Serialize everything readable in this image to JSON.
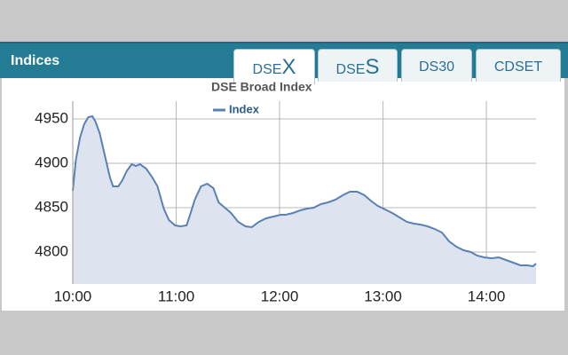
{
  "header": {
    "title": "Indices"
  },
  "tabs": [
    {
      "text": "DSE",
      "big": "X"
    },
    {
      "text": "DSE",
      "big": "S"
    },
    {
      "text": "DS30"
    },
    {
      "text": "CDSET"
    }
  ],
  "chart_data": {
    "type": "area",
    "title": "DSE Broad Index",
    "series": [
      {
        "name": "Index",
        "color": "#5a80b4",
        "fill": "#dde4ef",
        "x": [
          10.0,
          10.03,
          10.07,
          10.11,
          10.15,
          10.19,
          10.22,
          10.26,
          10.31,
          10.36,
          10.39,
          10.44,
          10.48,
          10.52,
          10.57,
          10.61,
          10.65,
          10.71,
          10.77,
          10.82,
          10.88,
          10.93,
          10.99,
          11.04,
          11.1,
          11.14,
          11.18,
          11.24,
          11.3,
          11.36,
          11.41,
          11.46,
          11.53,
          11.6,
          11.67,
          11.73,
          11.8,
          11.87,
          11.94,
          12.01,
          12.06,
          12.13,
          12.2,
          12.27,
          12.33,
          12.4,
          12.47,
          12.54,
          12.61,
          12.68,
          12.75,
          12.82,
          12.88,
          12.95,
          13.02,
          13.09,
          13.16,
          13.23,
          13.3,
          13.36,
          13.43,
          13.5,
          13.57,
          13.64,
          13.71,
          13.78,
          13.85,
          13.91,
          13.98,
          14.05,
          14.12,
          14.19,
          14.26,
          14.33,
          14.4,
          14.45,
          14.48
        ],
        "values": [
          4869,
          4904,
          4929,
          4944,
          4952,
          4953,
          4947,
          4934,
          4909,
          4884,
          4874,
          4874,
          4881,
          4891,
          4899,
          4897,
          4899,
          4894,
          4884,
          4874,
          4849,
          4836,
          4830,
          4829,
          4830,
          4844,
          4859,
          4874,
          4877,
          4872,
          4856,
          4851,
          4844,
          4834,
          4829,
          4828,
          4834,
          4838,
          4840,
          4842,
          4842,
          4844,
          4847,
          4849,
          4850,
          4854,
          4856,
          4859,
          4864,
          4868,
          4868,
          4864,
          4858,
          4852,
          4848,
          4844,
          4839,
          4834,
          4832,
          4831,
          4829,
          4826,
          4822,
          4812,
          4806,
          4802,
          4800,
          4796,
          4794,
          4793,
          4794,
          4791,
          4788,
          4785,
          4785,
          4784,
          4787
        ]
      }
    ],
    "xlim": [
      10,
      14.48
    ],
    "xticks": [
      {
        "value": 10,
        "label": "10:00"
      },
      {
        "value": 11,
        "label": "11:00"
      },
      {
        "value": 12,
        "label": "12:00"
      },
      {
        "value": 13,
        "label": "13:00"
      },
      {
        "value": 14,
        "label": "14:00"
      }
    ],
    "ylim": [
      4764,
      4970
    ],
    "yticks": [
      4800,
      4850,
      4900,
      4950
    ],
    "grid": true
  }
}
